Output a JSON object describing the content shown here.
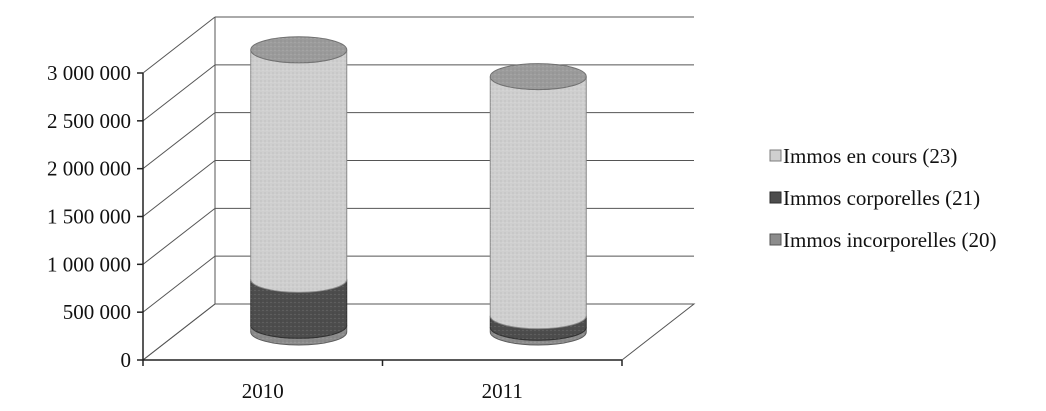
{
  "chart_data": {
    "type": "bar",
    "style": "3d-stacked-cylinder",
    "categories": [
      "2010",
      "2011"
    ],
    "series": [
      {
        "name": "Immos incorporelles (20)",
        "values": [
          70000,
          50000
        ],
        "color": "#8c8c8c"
      },
      {
        "name": "Immos corporelles (21)",
        "values": [
          480000,
          120000
        ],
        "color": "#4d4d4d"
      },
      {
        "name": "Immos en cours (23)",
        "values": [
          2400000,
          2500000
        ],
        "color": "#cfcfcf"
      }
    ],
    "legend_order": [
      2,
      1,
      0
    ],
    "y_ticks": [
      "0",
      "500 000",
      "1 000 000",
      "1 500 000",
      "2 000 000",
      "2 500 000",
      "3 000 000"
    ],
    "ylim": [
      0,
      3000000
    ],
    "y_step": 500000,
    "grid": true,
    "legend_position": "right",
    "title": "",
    "xlabel": "",
    "ylabel": ""
  }
}
